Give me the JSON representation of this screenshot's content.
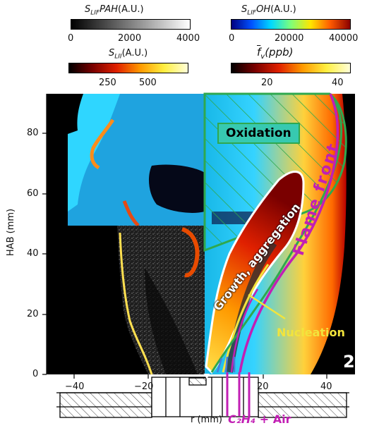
{
  "colorbars": {
    "pah": {
      "title": "S_LIF PAH (A.U.)",
      "ticks": [
        "0",
        "2000",
        "4000"
      ]
    },
    "oh": {
      "title": "S_LIF OH (A.U.)",
      "ticks": [
        "0",
        "20000",
        "40000"
      ]
    },
    "lii": {
      "title": "S_LII (A.U.)",
      "ticks": [
        "250",
        "500"
      ]
    },
    "fv": {
      "title": "f_v (ppb)",
      "ticks": [
        "20",
        "40"
      ]
    }
  },
  "axes": {
    "ylabel": "HAB (mm)",
    "xlabel": "r (mm)",
    "yticks": [
      "80",
      "60",
      "40",
      "20",
      "0"
    ],
    "xticks": [
      "−40",
      "−20",
      "20",
      "40"
    ]
  },
  "annotations": {
    "oxidation": "Oxidation",
    "growth": "Growth, aggregation",
    "flame_front": "Flame front",
    "nucleation": "Nucleation",
    "panel_number": "2",
    "fuel": "C₂H₄",
    "fuel_suffix": " + Air"
  },
  "colors": {
    "annotation_magenta": "#c21fb4",
    "nucleation_yellow": "#f2e43c",
    "oxidation_green": "#2fa84f"
  }
}
